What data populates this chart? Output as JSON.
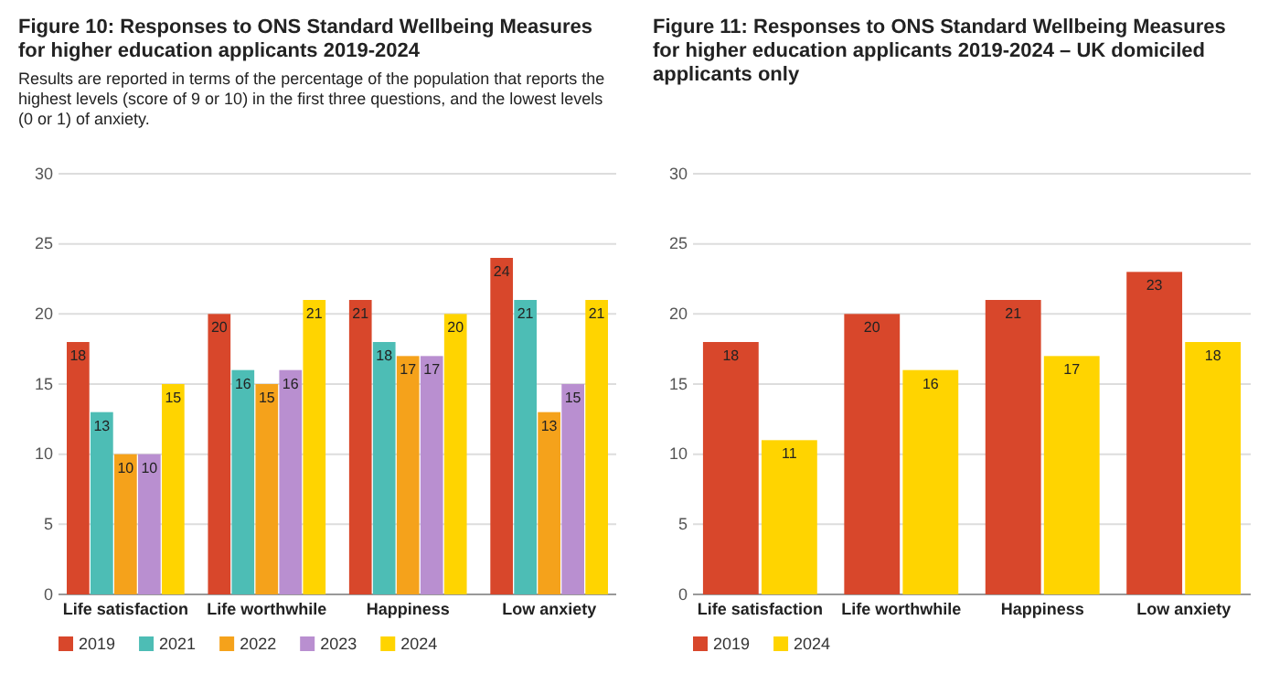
{
  "chart_data": [
    {
      "type": "bar",
      "title": "Figure 10: Responses to ONS Standard Wellbeing Measures for higher education applicants 2019-2024",
      "subtitle": "Results are reported in terms of the percentage of the population that reports the highest levels (score of 9 or 10) in the first three questions, and the lowest levels (0 or 1) of anxiety.",
      "categories": [
        "Life satisfaction",
        "Life worthwhile",
        "Happiness",
        "Low anxiety"
      ],
      "series": [
        {
          "name": "2019",
          "color": "#d8472b",
          "values": [
            18,
            20,
            21,
            24
          ]
        },
        {
          "name": "2021",
          "color": "#4dbdb5",
          "values": [
            13,
            16,
            18,
            21
          ]
        },
        {
          "name": "2022",
          "color": "#f5a21b",
          "values": [
            10,
            15,
            17,
            13
          ]
        },
        {
          "name": "2023",
          "color": "#b98fd0",
          "values": [
            10,
            16,
            17,
            15
          ]
        },
        {
          "name": "2024",
          "color": "#ffd400",
          "values": [
            15,
            21,
            20,
            21
          ]
        }
      ],
      "ylim": [
        0,
        30
      ],
      "yticks": [
        0,
        5,
        10,
        15,
        20,
        25,
        30
      ],
      "grid": "y",
      "legend": "bottom",
      "data_labels": true
    },
    {
      "type": "bar",
      "title": "Figure 11: Responses to ONS Standard Wellbeing Measures for higher education applicants 2019-2024 – UK domiciled applicants only",
      "categories": [
        "Life satisfaction",
        "Life worthwhile",
        "Happiness",
        "Low anxiety"
      ],
      "series": [
        {
          "name": "2019",
          "color": "#d8472b",
          "values": [
            18,
            20,
            21,
            23
          ]
        },
        {
          "name": "2024",
          "color": "#ffd400",
          "values": [
            11,
            16,
            17,
            18
          ]
        }
      ],
      "ylim": [
        0,
        30
      ],
      "yticks": [
        0,
        5,
        10,
        15,
        20,
        25,
        30
      ],
      "grid": "y",
      "legend": "bottom",
      "data_labels": true
    }
  ]
}
